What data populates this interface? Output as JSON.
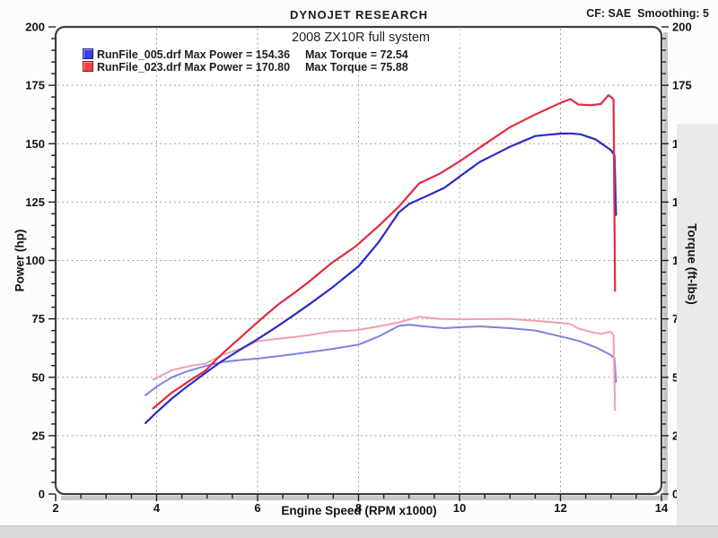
{
  "header": {
    "brand": "DYNOJET RESEARCH",
    "cf_smoothing": "CF: SAE  Smoothing: 5"
  },
  "chart_data": {
    "type": "line",
    "title": "2008 ZX10R full system",
    "xlabel": "Engine Speed (RPM x1000)",
    "ylabel_left": "Power (hp)",
    "ylabel_right": "Torque (ft-lbs)",
    "xlim": [
      2,
      14
    ],
    "ylim": [
      0,
      200
    ],
    "xticks": [
      2,
      4,
      6,
      8,
      10,
      12,
      14
    ],
    "yticks": [
      0,
      25,
      50,
      75,
      100,
      125,
      150,
      175,
      200
    ],
    "x_minor_step": 0.5,
    "y_minor_step": 5,
    "grid": "dotted-at-major-ticks",
    "legend_position": "top-left",
    "colors": {
      "grid": "#9a9a9a",
      "frame": "#3f3f3f",
      "text": "#141414"
    },
    "runs": [
      {
        "file": "RunFile_005.drf",
        "max_power": 154.36,
        "max_torque": 72.54,
        "legend_power_text": "RunFile_005.drf Max Power = 154.36",
        "legend_torque_text": "Max Torque = 72.54",
        "swatch_color": "#3d3de0",
        "swatch_border": "#18188a",
        "power_color": "#2b2bc4",
        "torque_color": "#8181e0",
        "power_hp": [
          [
            3.78,
            30.4
          ],
          [
            4.0,
            35.0
          ],
          [
            4.3,
            40.9
          ],
          [
            4.6,
            46.0
          ],
          [
            5.0,
            52.4
          ],
          [
            5.3,
            57.0
          ],
          [
            5.7,
            62.4
          ],
          [
            6.0,
            66.3
          ],
          [
            6.4,
            71.9
          ],
          [
            6.75,
            77.1
          ],
          [
            7.1,
            82.4
          ],
          [
            7.5,
            88.8
          ],
          [
            8.0,
            97.5
          ],
          [
            8.4,
            107.9
          ],
          [
            8.8,
            120.6
          ],
          [
            9.0,
            124.2
          ],
          [
            9.3,
            127.1
          ],
          [
            9.7,
            131.1
          ],
          [
            10.0,
            135.9
          ],
          [
            10.4,
            142.2
          ],
          [
            10.7,
            145.4
          ],
          [
            11.0,
            148.7
          ],
          [
            11.5,
            153.3
          ],
          [
            12.0,
            154.3
          ],
          [
            12.2,
            154.4
          ],
          [
            12.4,
            154.0
          ],
          [
            12.7,
            151.8
          ],
          [
            13.0,
            147.2
          ],
          [
            13.07,
            144.9
          ],
          [
            13.1,
            119.5
          ]
        ],
        "torque_ftlb": [
          [
            3.78,
            42.3
          ],
          [
            4.0,
            46.0
          ],
          [
            4.3,
            50.0
          ],
          [
            4.6,
            52.5
          ],
          [
            5.0,
            55.0
          ],
          [
            5.3,
            56.5
          ],
          [
            5.7,
            57.5
          ],
          [
            6.0,
            58.0
          ],
          [
            6.4,
            59.0
          ],
          [
            6.75,
            60.0
          ],
          [
            7.1,
            61.0
          ],
          [
            7.5,
            62.2
          ],
          [
            8.0,
            64.0
          ],
          [
            8.4,
            67.5
          ],
          [
            8.8,
            72.0
          ],
          [
            9.0,
            72.5
          ],
          [
            9.3,
            71.8
          ],
          [
            9.7,
            71.0
          ],
          [
            10.0,
            71.4
          ],
          [
            10.4,
            71.8
          ],
          [
            10.7,
            71.4
          ],
          [
            11.0,
            71.0
          ],
          [
            11.5,
            70.0
          ],
          [
            12.0,
            67.5
          ],
          [
            12.2,
            66.5
          ],
          [
            12.4,
            65.3
          ],
          [
            12.7,
            62.8
          ],
          [
            13.0,
            59.5
          ],
          [
            13.07,
            58.0
          ],
          [
            13.1,
            48.0
          ]
        ]
      },
      {
        "file": "RunFile_023.drf",
        "max_power": 170.8,
        "max_torque": 75.88,
        "legend_power_text": "RunFile_023.drf Max Power = 170.80",
        "legend_torque_text": "Max Torque = 75.88",
        "swatch_color": "#ee4040",
        "swatch_border": "#8c1010",
        "power_color": "#e02c44",
        "torque_color": "#f29fae",
        "power_hp": [
          [
            3.93,
            36.7
          ],
          [
            4.3,
            43.4
          ],
          [
            4.7,
            49.2
          ],
          [
            4.96,
            52.7
          ],
          [
            5.31,
            60.3
          ],
          [
            5.7,
            67.8
          ],
          [
            6.0,
            73.6
          ],
          [
            6.4,
            81.0
          ],
          [
            6.75,
            86.5
          ],
          [
            7.0,
            90.6
          ],
          [
            7.46,
            98.8
          ],
          [
            7.94,
            106.0
          ],
          [
            8.4,
            114.8
          ],
          [
            8.8,
            123.1
          ],
          [
            9.2,
            133.0
          ],
          [
            9.6,
            137.1
          ],
          [
            10.0,
            142.4
          ],
          [
            10.5,
            149.8
          ],
          [
            11.0,
            157.1
          ],
          [
            11.5,
            162.5
          ],
          [
            12.0,
            167.5
          ],
          [
            12.2,
            169.1
          ],
          [
            12.35,
            166.8
          ],
          [
            12.6,
            166.5
          ],
          [
            12.8,
            167.0
          ],
          [
            12.95,
            170.8
          ],
          [
            13.0,
            170.0
          ],
          [
            13.05,
            168.9
          ],
          [
            13.08,
            87.0
          ]
        ],
        "torque_ftlb": [
          [
            3.93,
            49.0
          ],
          [
            4.3,
            53.0
          ],
          [
            4.7,
            55.0
          ],
          [
            4.96,
            55.8
          ],
          [
            5.31,
            59.6
          ],
          [
            5.7,
            62.5
          ],
          [
            6.0,
            65.4
          ],
          [
            6.4,
            66.5
          ],
          [
            6.75,
            67.3
          ],
          [
            7.0,
            68.0
          ],
          [
            7.46,
            69.6
          ],
          [
            7.94,
            70.1
          ],
          [
            8.4,
            71.8
          ],
          [
            8.8,
            73.5
          ],
          [
            9.2,
            75.9
          ],
          [
            9.6,
            75.0
          ],
          [
            10.0,
            74.8
          ],
          [
            10.5,
            74.9
          ],
          [
            11.0,
            75.0
          ],
          [
            11.5,
            74.2
          ],
          [
            12.0,
            73.3
          ],
          [
            12.2,
            72.8
          ],
          [
            12.35,
            70.9
          ],
          [
            12.6,
            69.4
          ],
          [
            12.8,
            68.6
          ],
          [
            12.95,
            69.3
          ],
          [
            13.0,
            69.4
          ],
          [
            13.05,
            68.0
          ],
          [
            13.08,
            36.0
          ]
        ]
      }
    ]
  }
}
